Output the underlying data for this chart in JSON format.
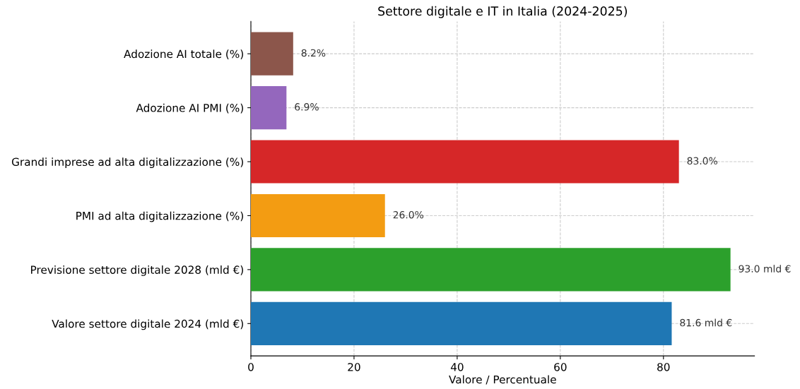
{
  "chart_data": {
    "type": "bar",
    "orientation": "horizontal",
    "title": "Settore digitale e IT in Italia (2024-2025)",
    "xlabel": "Valore / Percentuale",
    "categories": [
      "Adozione AI totale (%)",
      "Adozione AI PMI (%)",
      "Grandi imprese ad alta digitalizzazione (%)",
      "PMI ad alta digitalizzazione (%)",
      "Previsione settore digitale 2028 (mld €)",
      "Valore settore digitale 2024 (mld €)"
    ],
    "values": [
      8.2,
      6.9,
      83.0,
      26.0,
      93.0,
      81.6
    ],
    "colors": [
      "#8c564b",
      "#9467bd",
      "#d62728",
      "#f39c12",
      "#2ca02c",
      "#1f77b4"
    ],
    "value_labels": [
      "8.2%",
      "6.9%",
      "83.0%",
      "26.0%",
      "93.0 mld €",
      "81.6 mld €"
    ],
    "xlim": [
      0,
      97.65
    ],
    "xticks": [
      0,
      20,
      40,
      60,
      80
    ],
    "grid": true
  }
}
